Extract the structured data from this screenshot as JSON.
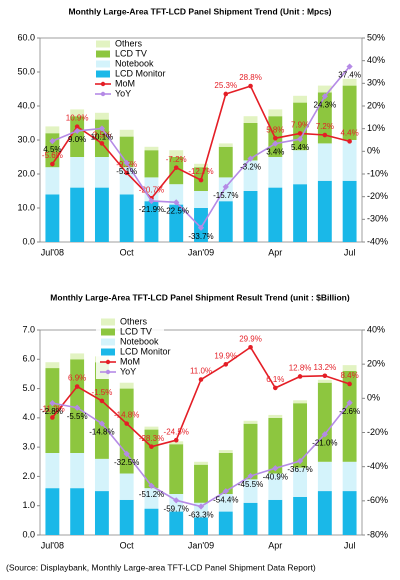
{
  "chart_data": [
    {
      "type": "bar",
      "stacked": true,
      "title": "Monthly Large-Area TFT-LCD Panel Shipment Trend (Unit : Mpcs)",
      "categories": [
        "Jul'08",
        null,
        null,
        "Oct",
        null,
        null,
        "Jan'09",
        null,
        null,
        "Apr",
        null,
        null,
        "Jul"
      ],
      "ylim": [
        0,
        60
      ],
      "yticks": [
        {
          "value": 0,
          "label": "0.0"
        },
        {
          "value": 10,
          "label": "10.0"
        },
        {
          "value": 20,
          "label": "20.0"
        },
        {
          "value": 30,
          "label": "30.0"
        },
        {
          "value": 40,
          "label": "40.0"
        },
        {
          "value": 50,
          "label": "50.0"
        },
        {
          "value": 60,
          "label": "60.0"
        }
      ],
      "y2lim": [
        -40,
        50
      ],
      "y2ticks": [
        {
          "value": -40,
          "label": "-40%"
        },
        {
          "value": -30,
          "label": "-30%"
        },
        {
          "value": -20,
          "label": "-20%"
        },
        {
          "value": -10,
          "label": "-10%"
        },
        {
          "value": 0,
          "label": "0%"
        },
        {
          "value": 10,
          "label": "10%"
        },
        {
          "value": 20,
          "label": "20%"
        },
        {
          "value": 30,
          "label": "30%"
        },
        {
          "value": 40,
          "label": "40%"
        },
        {
          "value": 50,
          "label": "50%"
        }
      ],
      "legend": "top-left",
      "series": [
        {
          "name": "LCD Monitor",
          "color": "#1ab8e8",
          "values": [
            14,
            16,
            16,
            14,
            12,
            11,
            10,
            12,
            15,
            16,
            17,
            18,
            18
          ]
        },
        {
          "name": "Notebook",
          "color": "#d4f3fb",
          "values": [
            8,
            9,
            9,
            8,
            7,
            6,
            5,
            7,
            9,
            9,
            10,
            11,
            12
          ]
        },
        {
          "name": "LCD TV",
          "color": "#8dc63f",
          "values": [
            10,
            12,
            11,
            9,
            8,
            8,
            7,
            9,
            11,
            12,
            14,
            15,
            16
          ]
        },
        {
          "name": "Others",
          "color": "#e2f3c2",
          "values": [
            2,
            2,
            2,
            2,
            1,
            2,
            1,
            1,
            2,
            2,
            2,
            2,
            2
          ]
        },
        {
          "name": "MoM",
          "type": "line",
          "axis": "y2",
          "color": "#e41e26",
          "values": [
            -5.6,
            10.9,
            3.5,
            -9.5,
            -20.7,
            -7.2,
            -12.7,
            25.3,
            28.8,
            5.8,
            7.9,
            7.2,
            4.4
          ],
          "value_labels": [
            "-5.6%",
            "10.9%",
            "3.5%",
            "-9.5%",
            "-20.7%",
            "-7.2%",
            "-12.7%",
            "25.3%",
            "28.8%",
            "5.8%",
            "7.9%",
            "7.2%",
            "4.4%"
          ]
        },
        {
          "name": "YoY",
          "type": "line",
          "axis": "y2",
          "color": "#b58ae6",
          "values": [
            4.5,
            9.0,
            10.1,
            -5.1,
            -21.9,
            -22.5,
            -33.7,
            -15.7,
            -3.2,
            3.4,
            5.4,
            24.3,
            37.4
          ],
          "value_labels": [
            "4.5%",
            "9.0%",
            "10.1%",
            "-5.1%",
            "-21.9%",
            "-22.5%",
            "-33.7%",
            "-15.7%",
            "-3.2%",
            "3.4%",
            "5.4%",
            "24.3%",
            "37.4%"
          ]
        }
      ]
    },
    {
      "type": "bar",
      "stacked": true,
      "title": "Monthly Large-Area TFT-LCD Panel Shipment Result Trend (unit : $Billion)",
      "categories": [
        "Jul'08",
        null,
        null,
        "Oct",
        null,
        null,
        "Jan'09",
        null,
        null,
        "Apr",
        null,
        null,
        "Jul"
      ],
      "ylim": [
        0,
        7
      ],
      "yticks": [
        {
          "value": 0,
          "label": "0.0"
        },
        {
          "value": 1,
          "label": "1.0"
        },
        {
          "value": 2,
          "label": "2.0"
        },
        {
          "value": 3,
          "label": "3.0"
        },
        {
          "value": 4,
          "label": "4.0"
        },
        {
          "value": 5,
          "label": "5.0"
        },
        {
          "value": 6,
          "label": "6.0"
        },
        {
          "value": 7,
          "label": "7.0"
        }
      ],
      "y2lim": [
        -80,
        40
      ],
      "y2ticks": [
        {
          "value": -80,
          "label": "-80%"
        },
        {
          "value": -60,
          "label": "-60%"
        },
        {
          "value": -40,
          "label": "-40%"
        },
        {
          "value": -20,
          "label": "-20%"
        },
        {
          "value": 0,
          "label": "0%"
        },
        {
          "value": 20,
          "label": "20%"
        },
        {
          "value": 40,
          "label": "40%"
        }
      ],
      "legend": "top-left",
      "series": [
        {
          "name": "LCD Monitor",
          "color": "#1ab8e8",
          "values": [
            1.6,
            1.6,
            1.5,
            1.2,
            0.9,
            0.8,
            0.6,
            0.8,
            1.1,
            1.2,
            1.3,
            1.5,
            1.5
          ]
        },
        {
          "name": "Notebook",
          "color": "#d4f3fb",
          "values": [
            1.2,
            1.2,
            1.1,
            0.9,
            0.7,
            0.6,
            0.5,
            0.6,
            0.8,
            0.9,
            1.0,
            1.0,
            1.0
          ]
        },
        {
          "name": "LCD TV",
          "color": "#8dc63f",
          "values": [
            2.9,
            3.2,
            3.3,
            2.9,
            2.0,
            1.7,
            1.3,
            1.4,
            1.9,
            1.9,
            2.2,
            2.7,
            3.1
          ]
        },
        {
          "name": "Others",
          "color": "#e2f3c2",
          "values": [
            0.2,
            0.2,
            0.2,
            0.2,
            0.1,
            0.1,
            0.1,
            0.1,
            0.1,
            0.1,
            0.1,
            0.1,
            0.2
          ]
        },
        {
          "name": "MoM",
          "type": "line",
          "axis": "y2",
          "color": "#e41e26",
          "values": [
            -11.2,
            6.9,
            -1.5,
            -14.8,
            -28.3,
            -24.5,
            11.0,
            19.9,
            29.9,
            6.1,
            12.8,
            13.2,
            8.4
          ],
          "value_labels": [
            "-11.2%",
            "6.9%",
            "-1.5%",
            "-14.8%",
            "-28.3%",
            "-24.5%",
            "11.0%",
            "19.9%",
            "29.9%",
            "6.1%",
            "12.8%",
            "13.2%",
            "8.4%"
          ]
        },
        {
          "name": "YoY",
          "type": "line",
          "axis": "y2",
          "color": "#b58ae6",
          "values": [
            -2.8,
            -5.5,
            -14.8,
            -32.5,
            -51.2,
            -59.7,
            -63.3,
            -54.4,
            -45.5,
            -40.9,
            -36.7,
            -21.0,
            -2.6
          ],
          "value_labels": [
            "-2.8%",
            "-5.5%",
            "-14.8%",
            "-32.5%",
            "-51.2%",
            "-59.7%",
            "-63.3%",
            "-54.4%",
            "-45.5%",
            "-40.9%",
            "-36.7%",
            "-21.0%",
            "-2.6%"
          ]
        }
      ]
    }
  ],
  "source": "(Source: Displaybank, Monthly Large-area TFT-LCD Panel Shipment Data Report)"
}
